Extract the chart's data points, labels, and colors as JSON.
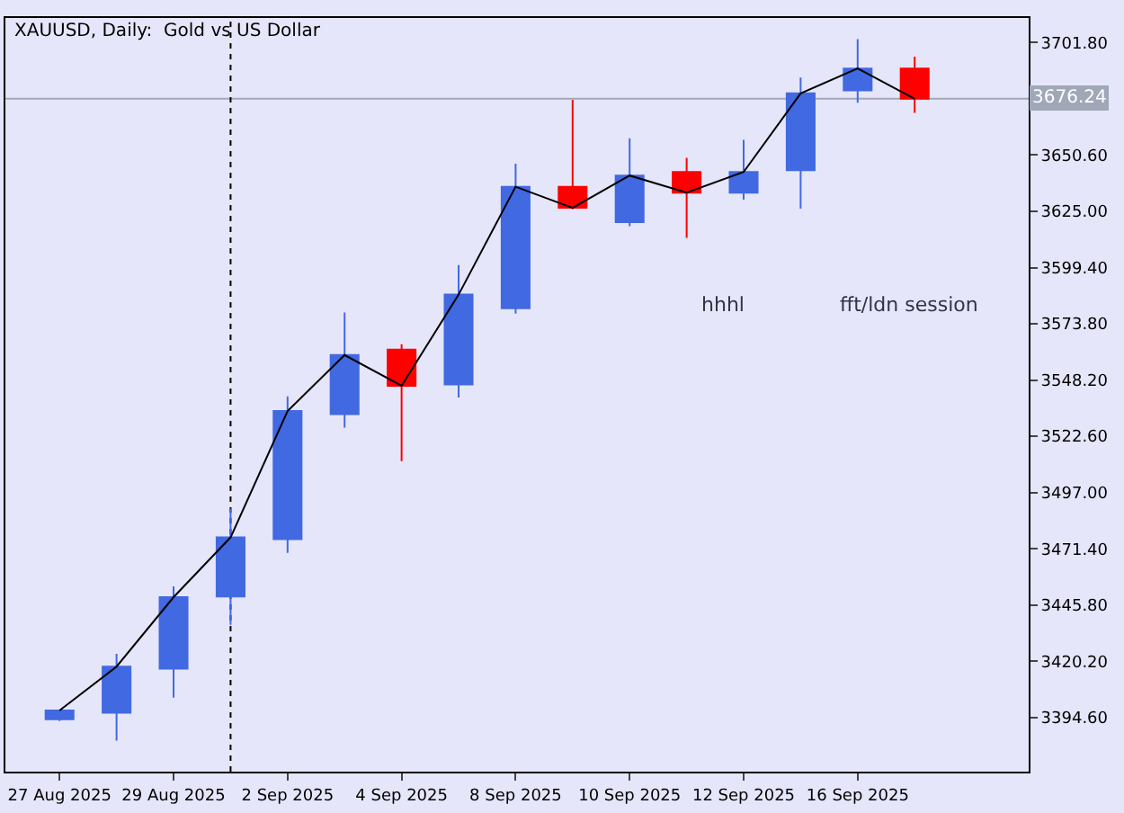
{
  "chart_data": {
    "type": "candlestick",
    "title": "XAUUSD, Daily:  Gold vs US Dollar",
    "categories": [
      "27 Aug 2025",
      null,
      "29 Aug 2025",
      null,
      "2 Sep 2025",
      null,
      "4 Sep 2025",
      null,
      "8 Sep 2025",
      null,
      "10 Sep 2025",
      null,
      "12 Sep 2025",
      null,
      "16 Sep 2025",
      null
    ],
    "ohlc": [
      [
        3393.8,
        3398.0,
        3393.0,
        3397.8
      ],
      [
        3396.8,
        3423.6,
        3384.1,
        3417.8
      ],
      [
        3416.9,
        3454.3,
        3403.7,
        3449.4
      ],
      [
        3449.7,
        3489.7,
        3436.8,
        3476.6
      ],
      [
        3475.8,
        3540.8,
        3469.6,
        3534.1
      ],
      [
        3532.7,
        3579.0,
        3526.6,
        3559.6
      ],
      [
        3562.1,
        3564.5,
        3511.3,
        3545.6
      ],
      [
        3546.2,
        3600.5,
        3540.3,
        3587.1
      ],
      [
        3580.9,
        3646.7,
        3578.4,
        3636.2
      ],
      [
        3636.2,
        3675.8,
        3626.0,
        3626.6
      ],
      [
        3620.1,
        3658.3,
        3618.2,
        3641.3
      ],
      [
        3642.9,
        3649.4,
        3612.9,
        3633.5
      ],
      [
        3633.5,
        3657.5,
        3630.3,
        3642.9
      ],
      [
        3643.7,
        3685.9,
        3626.2,
        3678.7
      ],
      [
        3680.0,
        3703.4,
        3674.4,
        3690.0
      ],
      [
        3690.0,
        3695.4,
        3669.8,
        3676.24
      ]
    ],
    "colors": [
      "#4169e1",
      "#4169e1",
      "#4169e1",
      "#4169e1",
      "#4169e1",
      "#4169e1",
      "#ff0000",
      "#4169e1",
      "#4169e1",
      "#ff0000",
      "#4169e1",
      "#ff0000",
      "#4169e1",
      "#4169e1",
      "#4169e1",
      "#ff0000"
    ],
    "series": [
      {
        "type": "line",
        "color": "#000000",
        "values": [
          3397.8,
          3417.8,
          3449.4,
          3476.6,
          3534.1,
          3559.6,
          3545.6,
          3587.1,
          3636.2,
          3626.6,
          3641.3,
          3633.5,
          3642.9,
          3678.7,
          3690.0,
          3676.24
        ]
      }
    ],
    "ylim": [
      3370,
      3713
    ],
    "yticks": [
      {
        "value": 3394.6,
        "label": "3394.60"
      },
      {
        "value": 3420.2,
        "label": "3420.20"
      },
      {
        "value": 3445.8,
        "label": "3445.80"
      },
      {
        "value": 3471.4,
        "label": "3471.40"
      },
      {
        "value": 3497.0,
        "label": "3497.00"
      },
      {
        "value": 3522.6,
        "label": "3522.60"
      },
      {
        "value": 3548.2,
        "label": "3548.20"
      },
      {
        "value": 3573.8,
        "label": "3573.80"
      },
      {
        "value": 3599.4,
        "label": "3599.40"
      },
      {
        "value": 3625.0,
        "label": "3625.00"
      },
      {
        "value": 3650.6,
        "label": "3650.60"
      },
      {
        "value": 3676.2,
        "label": null
      },
      {
        "value": 3701.8,
        "label": "3701.80"
      }
    ],
    "ref_lines": [
      {
        "axis": "y",
        "value": 3676.24,
        "label": "3676.24",
        "color": "#a0a8b8",
        "line_style": "solid"
      }
    ],
    "annotations": [
      "hhhl",
      "fft/ldn session"
    ],
    "grid": false
  }
}
